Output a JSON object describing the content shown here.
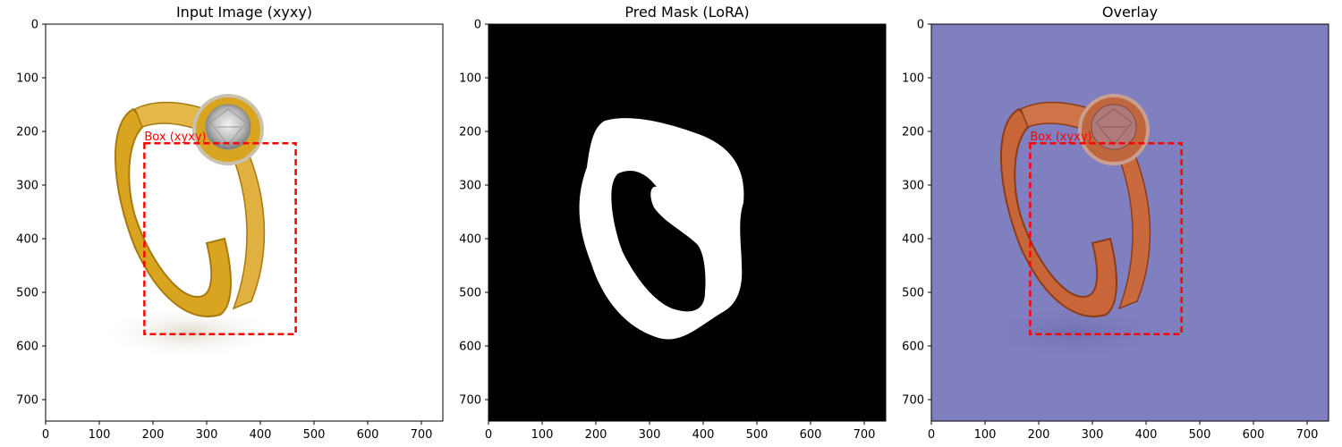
{
  "panels": [
    {
      "title": "Input Image (xyxy)",
      "kind": "image",
      "box_label": "Box (xyxy)"
    },
    {
      "title": "Pred Mask (LoRA)",
      "kind": "mask",
      "box_label": ""
    },
    {
      "title": "Overlay",
      "kind": "overlay",
      "box_label": "Box (xyxy)"
    }
  ],
  "ticks": [
    "0",
    "100",
    "200",
    "300",
    "400",
    "500",
    "600",
    "700"
  ],
  "colors": {
    "box": "#ff0000",
    "mask_bg": "#000000",
    "mask_fg": "#ffffff",
    "overlay_bg": "#8080c0",
    "ring_gold": "#d9a520",
    "ring_overlay": "#c8663a"
  },
  "chart_data": {
    "type": "image",
    "image_extent": [
      0,
      740,
      0,
      740
    ],
    "xlim": [
      0,
      740
    ],
    "ylim": [
      740,
      0
    ],
    "box_xyxy": [
      184,
      222,
      466,
      578
    ]
  }
}
